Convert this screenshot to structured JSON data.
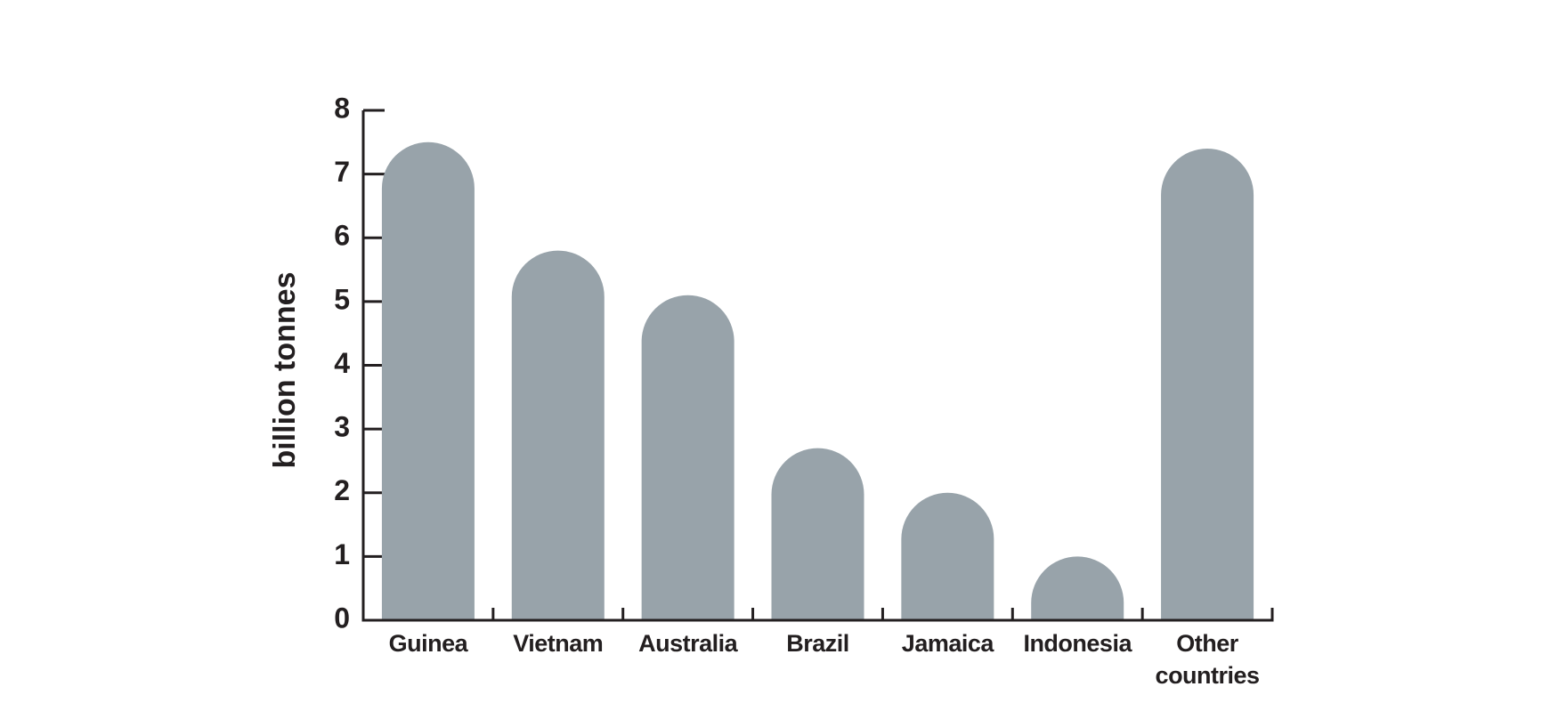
{
  "chart_data": {
    "type": "bar",
    "y_label": "billion tonnes",
    "categories": [
      "Guinea",
      "Vietnam",
      "Australia",
      "Brazil",
      "Jamaica",
      "Indonesia",
      "Other countries"
    ],
    "values": [
      7.5,
      5.8,
      5.1,
      2.7,
      2.0,
      1.0,
      7.4
    ],
    "color": "#98a3aa",
    "ylim": [
      0,
      8
    ],
    "yticks": [
      0,
      1,
      2,
      3,
      4,
      5,
      6,
      7,
      8
    ]
  }
}
